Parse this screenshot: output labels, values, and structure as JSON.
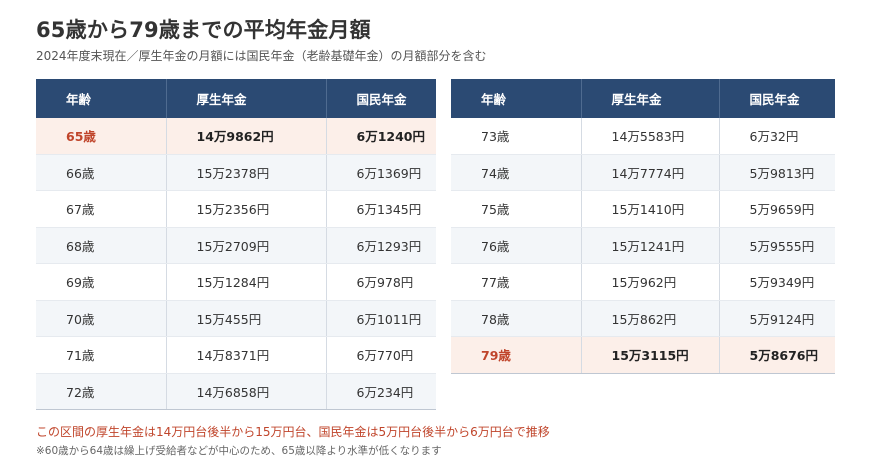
{
  "title": "65歳から79歳までの平均年金月額",
  "subtitle": "2024年度末現在／厚生年金の月額には国民年金（老齢基礎年金）の月額部分を含む",
  "columns": [
    "年齢",
    "厚生年金",
    "国民年金"
  ],
  "left_rows": [
    {
      "age": "65歳",
      "kosei": "14万9862円",
      "kokumin": "6万1240円",
      "highlight": true
    },
    {
      "age": "66歳",
      "kosei": "15万2378円",
      "kokumin": "6万1369円"
    },
    {
      "age": "67歳",
      "kosei": "15万2356円",
      "kokumin": "6万1345円"
    },
    {
      "age": "68歳",
      "kosei": "15万2709円",
      "kokumin": "6万1293円"
    },
    {
      "age": "69歳",
      "kosei": "15万1284円",
      "kokumin": "6万978円"
    },
    {
      "age": "70歳",
      "kosei": "15万455円",
      "kokumin": "6万1011円"
    },
    {
      "age": "71歳",
      "kosei": "14万8371円",
      "kokumin": "6万770円"
    },
    {
      "age": "72歳",
      "kosei": "14万6858円",
      "kokumin": "6万234円"
    }
  ],
  "right_rows": [
    {
      "age": "73歳",
      "kosei": "14万5583円",
      "kokumin": "6万32円"
    },
    {
      "age": "74歳",
      "kosei": "14万7774円",
      "kokumin": "5万9813円"
    },
    {
      "age": "75歳",
      "kosei": "15万1410円",
      "kokumin": "5万9659円"
    },
    {
      "age": "76歳",
      "kosei": "15万1241円",
      "kokumin": "5万9555円"
    },
    {
      "age": "77歳",
      "kosei": "15万962円",
      "kokumin": "5万9349円"
    },
    {
      "age": "78歳",
      "kosei": "15万862円",
      "kokumin": "5万9124円"
    },
    {
      "age": "79歳",
      "kosei": "15万3115円",
      "kokumin": "5万8676円",
      "highlight": true
    }
  ],
  "note": "この区間の厚生年金は14万円台後半から15万円台、国民年金は5万円台後半から6万円台で推移",
  "footnote": "※60歳から64歳は繰上げ受給者などが中心のため、65歳以降より水準が低くなります",
  "colors": {
    "header_bg": "#2b4a73",
    "highlight_bg": "#fcefe9",
    "highlight_text": "#c0452b",
    "stripe_bg": "#f3f6f9"
  }
}
